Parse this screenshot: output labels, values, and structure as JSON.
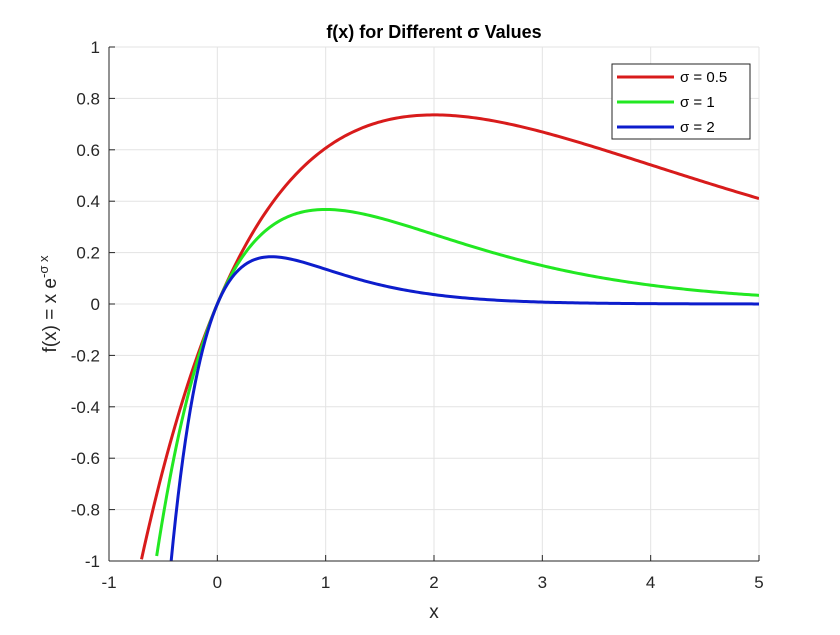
{
  "chart_data": {
    "type": "line",
    "title": "f(x) for Different σ Values",
    "xlabel": "x",
    "ylabel_main": "f(x) = x e",
    "ylabel_sup": "-σ x",
    "xlim": [
      -1,
      5
    ],
    "ylim": [
      -1,
      1
    ],
    "xticks": [
      -1,
      0,
      1,
      2,
      3,
      4,
      5
    ],
    "yticks": [
      -1,
      -0.8,
      -0.6,
      -0.4,
      -0.2,
      0,
      0.2,
      0.4,
      0.6,
      0.8,
      1
    ],
    "xtick_labels": [
      "-1",
      "0",
      "1",
      "2",
      "3",
      "4",
      "5"
    ],
    "ytick_labels": [
      "-1",
      "-0.8",
      "-0.6",
      "-0.4",
      "-0.2",
      "0",
      "0.2",
      "0.4",
      "0.6",
      "0.8",
      "1"
    ],
    "grid": true,
    "legend_position": "top-right",
    "series": [
      {
        "name": "σ = 0.5",
        "sigma": 0.5,
        "color": "#d81b1b",
        "x": [
          -0.7,
          -0.5,
          -0.25,
          0,
          0.25,
          0.5,
          0.75,
          1,
          1.5,
          2,
          2.5,
          3,
          3.5,
          4,
          4.5,
          5
        ],
        "y": [
          -0.993,
          -0.642,
          -0.283,
          0,
          0.221,
          0.389,
          0.515,
          0.607,
          0.708,
          0.736,
          0.716,
          0.669,
          0.608,
          0.541,
          0.474,
          0.41
        ]
      },
      {
        "name": "σ = 1",
        "sigma": 1,
        "color": "#22e822",
        "x": [
          -0.56,
          -0.5,
          -0.25,
          0,
          0.25,
          0.5,
          0.75,
          1,
          1.5,
          2,
          2.5,
          3,
          3.5,
          4,
          4.5,
          5
        ],
        "y": [
          -0.98,
          -0.824,
          -0.321,
          0,
          0.195,
          0.303,
          0.354,
          0.368,
          0.335,
          0.271,
          0.205,
          0.149,
          0.106,
          0.073,
          0.05,
          0.034
        ]
      },
      {
        "name": "σ = 2",
        "sigma": 2,
        "color": "#0d1dcc",
        "x": [
          -0.43,
          -0.35,
          -0.25,
          0,
          0.25,
          0.5,
          0.75,
          1,
          1.5,
          2,
          2.5,
          3,
          3.5,
          4,
          4.5,
          5
        ],
        "y": [
          -1.011,
          -0.705,
          -0.412,
          0,
          0.152,
          0.184,
          0.167,
          0.135,
          0.075,
          0.037,
          0.017,
          0.007,
          0.003,
          0.001,
          0.0006,
          0.0002
        ]
      }
    ]
  }
}
